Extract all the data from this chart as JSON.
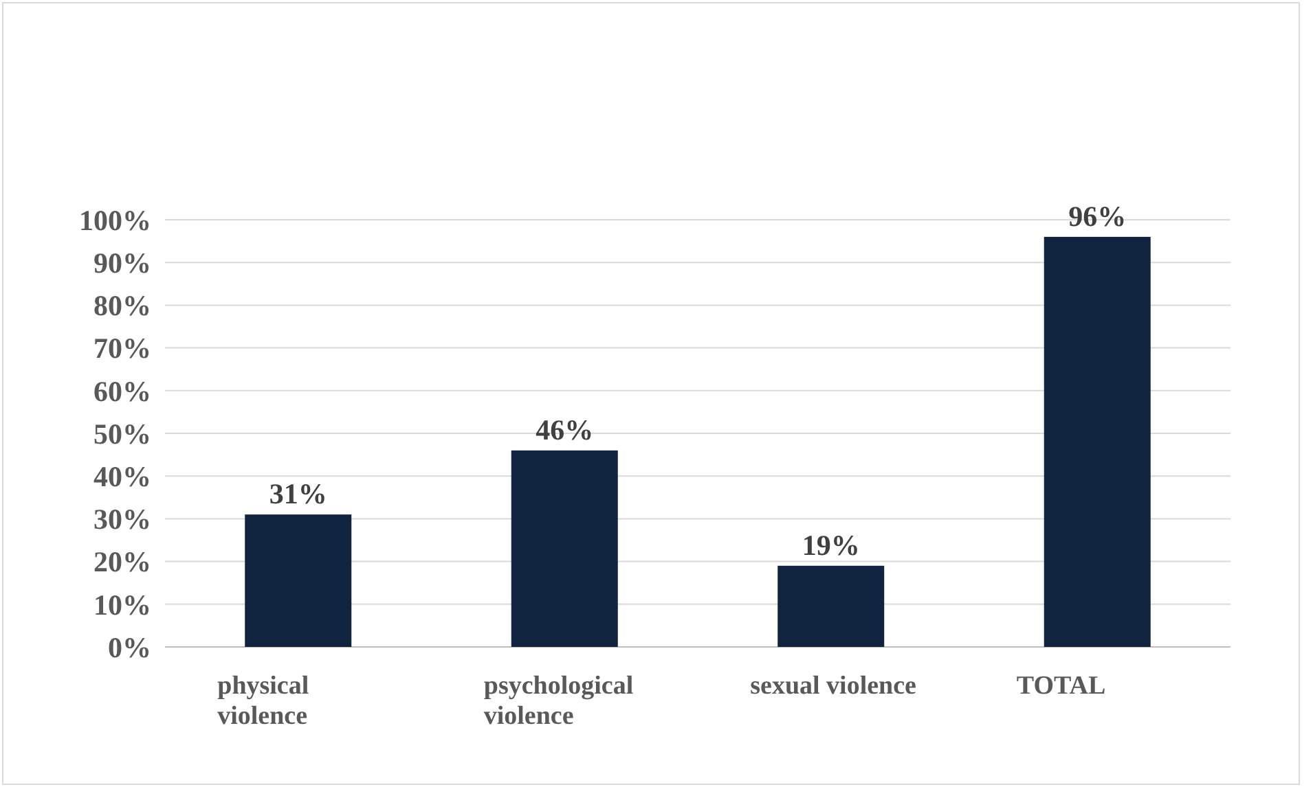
{
  "chart_data": {
    "type": "bar",
    "categories": [
      "physical violence",
      "psychological violence",
      "sexual violence",
      "TOTAL"
    ],
    "values": [
      31,
      46,
      19,
      96
    ],
    "color": "#10243f",
    "value_labels": [
      "31%",
      "46%",
      "19%",
      "96%"
    ],
    "ylim": [
      0,
      100
    ],
    "yticks": [
      {
        "value": 0,
        "label": "0%"
      },
      {
        "value": 10,
        "label": "10%"
      },
      {
        "value": 20,
        "label": "20%"
      },
      {
        "value": 30,
        "label": "30%"
      },
      {
        "value": 40,
        "label": "40%"
      },
      {
        "value": 50,
        "label": "50%"
      },
      {
        "value": 60,
        "label": "60%"
      },
      {
        "value": 70,
        "label": "70%"
      },
      {
        "value": 80,
        "label": "80%"
      },
      {
        "value": 90,
        "label": "90%"
      },
      {
        "value": 100,
        "label": "100%"
      }
    ],
    "grid": "y"
  }
}
